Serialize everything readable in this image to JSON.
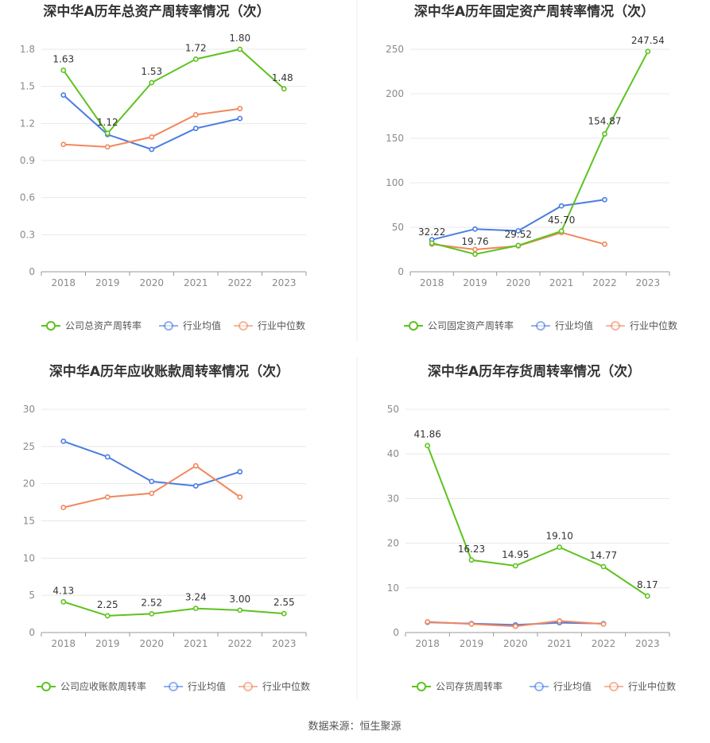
{
  "source_label": "数据来源：恒生聚源",
  "colors": {
    "company": "#5ec21f",
    "avg": "#4a7de1",
    "median": "#f2875c",
    "grid": "#e8e8e8",
    "axis": "#999999"
  },
  "chart_data": [
    {
      "type": "line",
      "title": "深中华A历年总资产周转率情况（次）",
      "categories": [
        "2018",
        "2019",
        "2020",
        "2021",
        "2022",
        "2023"
      ],
      "ylim": [
        0,
        1.8
      ],
      "yticks": [
        "0",
        "0.3",
        "0.6",
        "0.9",
        "1.2",
        "1.5",
        "1.8"
      ],
      "series": [
        {
          "name": "公司总资产周转率",
          "key": "company",
          "values": [
            1.63,
            1.12,
            1.53,
            1.72,
            1.8,
            1.48
          ],
          "labels": [
            "1.63",
            "1.12",
            "1.53",
            "1.72",
            "1.80",
            "1.48"
          ]
        },
        {
          "name": "行业均值",
          "key": "avg",
          "values": [
            1.43,
            1.11,
            0.99,
            1.16,
            1.24,
            null
          ]
        },
        {
          "name": "行业中位数",
          "key": "median",
          "values": [
            1.03,
            1.01,
            1.09,
            1.27,
            1.32,
            null
          ]
        }
      ],
      "grid": true,
      "legend": "bottom"
    },
    {
      "type": "line",
      "title": "深中华A历年固定资产周转率情况（次）",
      "categories": [
        "2018",
        "2019",
        "2020",
        "2021",
        "2022",
        "2023"
      ],
      "ylim": [
        0,
        250
      ],
      "yticks": [
        "0",
        "50",
        "100",
        "150",
        "200",
        "250"
      ],
      "series": [
        {
          "name": "公司固定资产周转率",
          "key": "company",
          "values": [
            32.22,
            19.76,
            29.52,
            45.7,
            154.87,
            247.54
          ],
          "labels": [
            "32.22",
            "19.76",
            "29.52",
            "45.70",
            "154.87",
            "247.54"
          ]
        },
        {
          "name": "行业均值",
          "key": "avg",
          "values": [
            36,
            48,
            46,
            74,
            81,
            null
          ]
        },
        {
          "name": "行业中位数",
          "key": "median",
          "values": [
            31,
            25,
            29,
            44,
            31,
            null
          ]
        }
      ],
      "grid": true,
      "legend": "bottom"
    },
    {
      "type": "line",
      "title": "深中华A历年应收账款周转率情况（次）",
      "categories": [
        "2018",
        "2019",
        "2020",
        "2021",
        "2022",
        "2023"
      ],
      "ylim": [
        0,
        30
      ],
      "yticks": [
        "0",
        "5",
        "10",
        "15",
        "20",
        "25",
        "30"
      ],
      "series": [
        {
          "name": "公司应收账款周转率",
          "key": "company",
          "values": [
            4.13,
            2.25,
            2.52,
            3.24,
            3.0,
            2.55
          ],
          "labels": [
            "4.13",
            "2.25",
            "2.52",
            "3.24",
            "3.00",
            "2.55"
          ]
        },
        {
          "name": "行业均值",
          "key": "avg",
          "values": [
            25.7,
            23.6,
            20.3,
            19.7,
            21.6,
            null
          ]
        },
        {
          "name": "行业中位数",
          "key": "median",
          "values": [
            16.8,
            18.2,
            18.7,
            22.4,
            18.2,
            null
          ]
        }
      ],
      "grid": true,
      "legend": "bottom"
    },
    {
      "type": "line",
      "title": "深中华A历年存货周转率情况（次）",
      "categories": [
        "2018",
        "2019",
        "2020",
        "2021",
        "2022",
        "2023"
      ],
      "ylim": [
        0,
        50
      ],
      "yticks": [
        "0",
        "10",
        "20",
        "30",
        "40",
        "50"
      ],
      "series": [
        {
          "name": "公司存货周转率",
          "key": "company",
          "values": [
            41.86,
            16.23,
            14.95,
            19.1,
            14.77,
            8.17
          ],
          "labels": [
            "41.86",
            "16.23",
            "14.95",
            "19.10",
            "14.77",
            "8.17"
          ]
        },
        {
          "name": "行业均值",
          "key": "avg",
          "values": [
            2.3,
            2.0,
            1.7,
            2.2,
            2.0,
            null
          ]
        },
        {
          "name": "行业中位数",
          "key": "median",
          "values": [
            2.4,
            1.9,
            1.4,
            2.6,
            1.9,
            null
          ]
        }
      ],
      "grid": true,
      "legend": "bottom"
    }
  ]
}
